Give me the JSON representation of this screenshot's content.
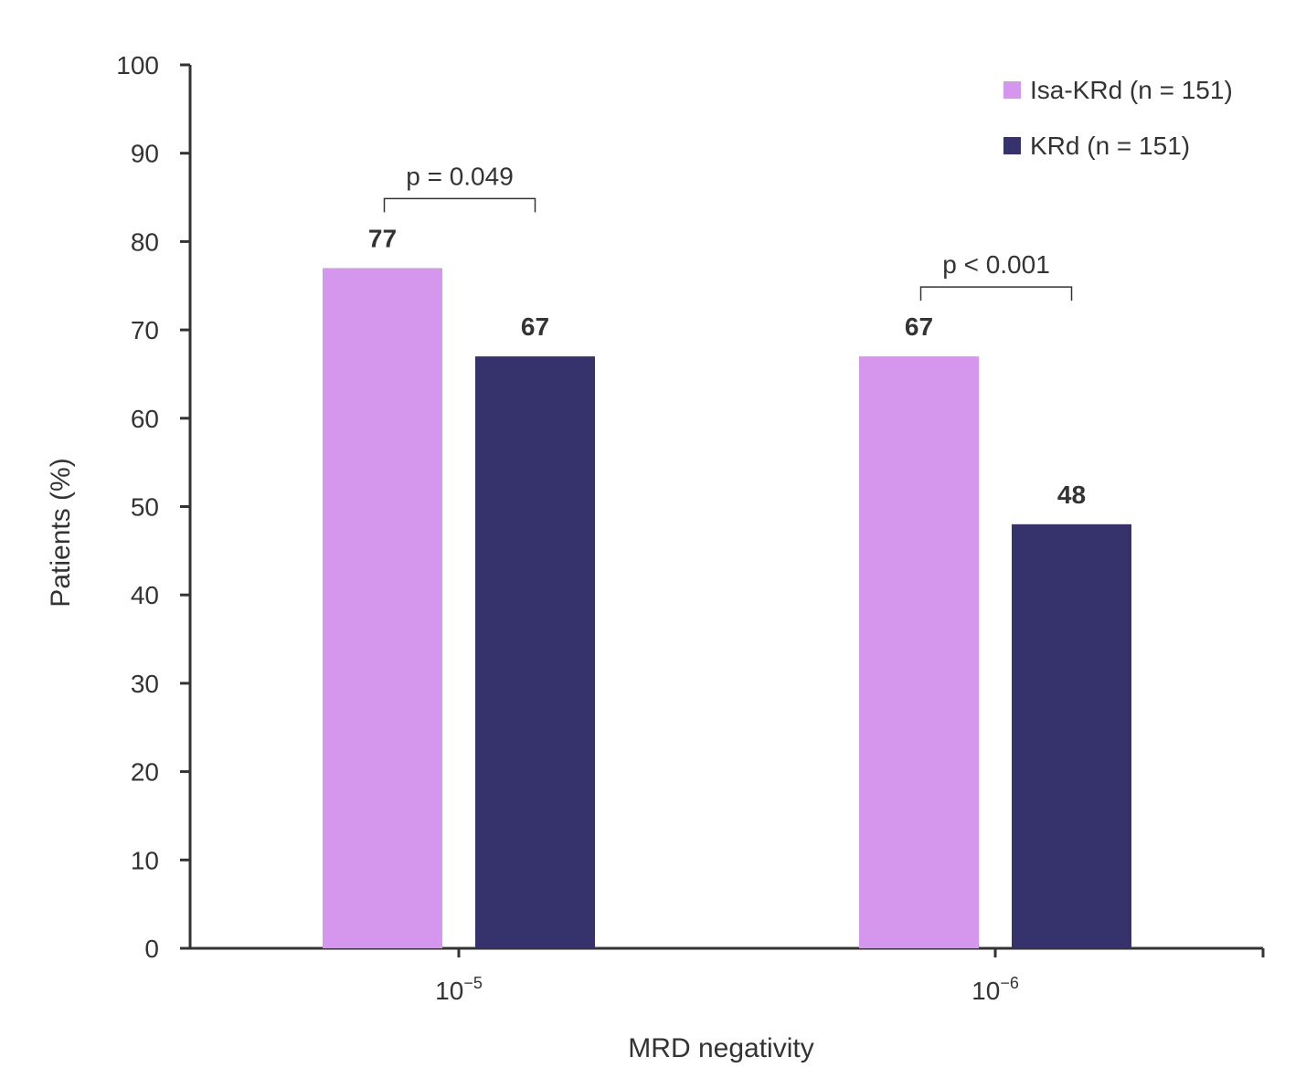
{
  "chart_data": {
    "type": "bar",
    "title": "",
    "xlabel": "MRD negativity",
    "ylabel": "Patients (%)",
    "ylim": [
      0,
      100
    ],
    "yticks": [
      0,
      10,
      20,
      30,
      40,
      50,
      60,
      70,
      80,
      90,
      100
    ],
    "categories": [
      {
        "base": "10",
        "exp": "−5"
      },
      {
        "base": "10",
        "exp": "−6"
      }
    ],
    "series": [
      {
        "name": "Isa-KRd (n = 151)",
        "color": "#d596ee",
        "values": [
          77,
          67
        ]
      },
      {
        "name": "KRd (n = 151)",
        "color": "#36326b",
        "values": [
          67,
          48
        ]
      }
    ],
    "annotations": [
      {
        "category_index": 0,
        "text": "p = 0.049"
      },
      {
        "category_index": 1,
        "text": "p < 0.001"
      }
    ],
    "legend_position": "top-right",
    "grid": false
  }
}
